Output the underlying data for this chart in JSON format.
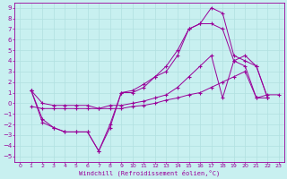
{
  "xlabel": "Windchill (Refroidissement éolien,°C)",
  "bg_color": "#c8f0f0",
  "grid_color": "#b0e0e0",
  "line_color": "#990099",
  "xlim": [
    -0.5,
    23.5
  ],
  "ylim": [
    -5.5,
    9.5
  ],
  "xticks": [
    0,
    1,
    2,
    3,
    4,
    5,
    6,
    7,
    8,
    9,
    10,
    11,
    12,
    13,
    14,
    15,
    16,
    17,
    18,
    19,
    20,
    21,
    22,
    23
  ],
  "yticks": [
    -5,
    -4,
    -3,
    -2,
    -1,
    0,
    1,
    2,
    3,
    4,
    5,
    6,
    7,
    8,
    9
  ],
  "lines": [
    {
      "x": [
        1,
        2,
        3,
        4,
        5,
        6,
        7,
        8,
        9,
        10,
        11,
        12,
        13,
        14,
        15,
        16,
        17,
        18,
        19,
        20,
        21,
        22
      ],
      "y": [
        1.2,
        0.0,
        -0.2,
        -0.2,
        -0.2,
        -0.2,
        -0.5,
        -0.2,
        -0.2,
        0.0,
        0.2,
        0.5,
        0.8,
        1.5,
        2.5,
        3.5,
        4.5,
        0.5,
        4.0,
        4.5,
        3.5,
        0.5
      ]
    },
    {
      "x": [
        1,
        2,
        3,
        4,
        5,
        6,
        7,
        8,
        9,
        10,
        11,
        12,
        13,
        14,
        15,
        16,
        17,
        18,
        19,
        20,
        21,
        22
      ],
      "y": [
        1.2,
        -1.8,
        -2.3,
        -2.7,
        -2.7,
        -2.7,
        -4.5,
        -2.3,
        1.0,
        1.0,
        1.5,
        2.5,
        3.0,
        4.5,
        7.0,
        7.5,
        9.0,
        8.5,
        4.5,
        4.0,
        3.5,
        0.5
      ]
    },
    {
      "x": [
        1,
        2,
        3,
        4,
        5,
        6,
        7,
        8,
        9,
        10,
        11,
        12,
        13,
        14,
        15,
        16,
        17,
        18,
        19,
        20,
        21,
        22,
        23
      ],
      "y": [
        -0.3,
        -0.5,
        -0.5,
        -0.5,
        -0.5,
        -0.5,
        -0.5,
        -0.5,
        -0.5,
        -0.3,
        -0.2,
        0.0,
        0.3,
        0.5,
        0.8,
        1.0,
        1.5,
        2.0,
        2.5,
        3.0,
        0.5,
        0.8,
        0.8
      ]
    },
    {
      "x": [
        1,
        2,
        3,
        4,
        5,
        6,
        7,
        8,
        9,
        10,
        11,
        12,
        13,
        14,
        15,
        16,
        17,
        18,
        19,
        20,
        21,
        22
      ],
      "y": [
        1.2,
        -1.5,
        -2.3,
        -2.7,
        -2.7,
        -2.7,
        -4.5,
        -2.0,
        1.0,
        1.2,
        1.8,
        2.5,
        3.5,
        5.0,
        7.0,
        7.5,
        7.5,
        7.0,
        4.0,
        3.5,
        0.5,
        0.5
      ]
    }
  ]
}
